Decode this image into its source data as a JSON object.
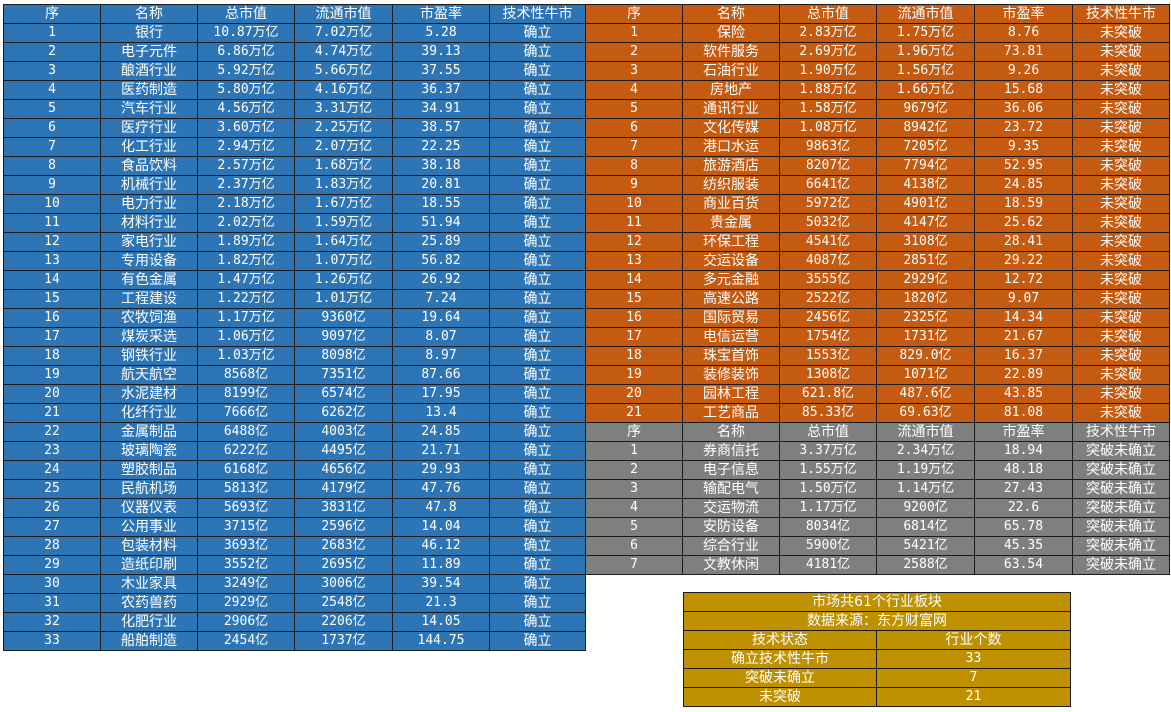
{
  "headers": [
    "序",
    "名称",
    "总市值",
    "流通市值",
    "市盈率",
    "技术性牛市"
  ],
  "blue_rows": [
    [
      "1",
      "银行",
      "10.87万亿",
      "7.02万亿",
      "5.28",
      "确立"
    ],
    [
      "2",
      "电子元件",
      "6.86万亿",
      "4.74万亿",
      "39.13",
      "确立"
    ],
    [
      "3",
      "酿酒行业",
      "5.92万亿",
      "5.66万亿",
      "37.55",
      "确立"
    ],
    [
      "4",
      "医药制造",
      "5.80万亿",
      "4.16万亿",
      "36.37",
      "确立"
    ],
    [
      "5",
      "汽车行业",
      "4.56万亿",
      "3.31万亿",
      "34.91",
      "确立"
    ],
    [
      "6",
      "医疗行业",
      "3.60万亿",
      "2.25万亿",
      "38.57",
      "确立"
    ],
    [
      "7",
      "化工行业",
      "2.94万亿",
      "2.07万亿",
      "22.25",
      "确立"
    ],
    [
      "8",
      "食品饮料",
      "2.57万亿",
      "1.68万亿",
      "38.18",
      "确立"
    ],
    [
      "9",
      "机械行业",
      "2.37万亿",
      "1.83万亿",
      "20.81",
      "确立"
    ],
    [
      "10",
      "电力行业",
      "2.18万亿",
      "1.67万亿",
      "18.55",
      "确立"
    ],
    [
      "11",
      "材料行业",
      "2.02万亿",
      "1.59万亿",
      "51.94",
      "确立"
    ],
    [
      "12",
      "家电行业",
      "1.89万亿",
      "1.64万亿",
      "25.89",
      "确立"
    ],
    [
      "13",
      "专用设备",
      "1.82万亿",
      "1.07万亿",
      "56.82",
      "确立"
    ],
    [
      "14",
      "有色金属",
      "1.47万亿",
      "1.26万亿",
      "26.92",
      "确立"
    ],
    [
      "15",
      "工程建设",
      "1.22万亿",
      "1.01万亿",
      "7.24",
      "确立"
    ],
    [
      "16",
      "农牧饲渔",
      "1.17万亿",
      "9360亿",
      "19.64",
      "确立"
    ],
    [
      "17",
      "煤炭采选",
      "1.06万亿",
      "9097亿",
      "8.07",
      "确立"
    ],
    [
      "18",
      "钢铁行业",
      "1.03万亿",
      "8098亿",
      "8.97",
      "确立"
    ],
    [
      "19",
      "航天航空",
      "8568亿",
      "7351亿",
      "87.66",
      "确立"
    ],
    [
      "20",
      "水泥建材",
      "8199亿",
      "6574亿",
      "17.95",
      "确立"
    ],
    [
      "21",
      "化纤行业",
      "7666亿",
      "6262亿",
      "13.4",
      "确立"
    ],
    [
      "22",
      "金属制品",
      "6488亿",
      "4003亿",
      "24.85",
      "确立"
    ],
    [
      "23",
      "玻璃陶瓷",
      "6222亿",
      "4495亿",
      "21.71",
      "确立"
    ],
    [
      "24",
      "塑胶制品",
      "6168亿",
      "4656亿",
      "29.93",
      "确立"
    ],
    [
      "25",
      "民航机场",
      "5813亿",
      "4179亿",
      "47.76",
      "确立"
    ],
    [
      "26",
      "仪器仪表",
      "5693亿",
      "3831亿",
      "47.8",
      "确立"
    ],
    [
      "27",
      "公用事业",
      "3715亿",
      "2596亿",
      "14.04",
      "确立"
    ],
    [
      "28",
      "包装材料",
      "3693亿",
      "2683亿",
      "46.12",
      "确立"
    ],
    [
      "29",
      "造纸印刷",
      "3552亿",
      "2695亿",
      "11.89",
      "确立"
    ],
    [
      "30",
      "木业家具",
      "3249亿",
      "3006亿",
      "39.54",
      "确立"
    ],
    [
      "31",
      "农药兽药",
      "2929亿",
      "2548亿",
      "21.3",
      "确立"
    ],
    [
      "32",
      "化肥行业",
      "2906亿",
      "2206亿",
      "14.05",
      "确立"
    ],
    [
      "33",
      "船舶制造",
      "2454亿",
      "1737亿",
      "144.75",
      "确立"
    ]
  ],
  "orange_rows": [
    [
      "1",
      "保险",
      "2.83万亿",
      "1.75万亿",
      "8.76",
      "未突破"
    ],
    [
      "2",
      "软件服务",
      "2.69万亿",
      "1.96万亿",
      "73.81",
      "未突破"
    ],
    [
      "3",
      "石油行业",
      "1.90万亿",
      "1.56万亿",
      "9.26",
      "未突破"
    ],
    [
      "4",
      "房地产",
      "1.88万亿",
      "1.66万亿",
      "15.68",
      "未突破"
    ],
    [
      "5",
      "通讯行业",
      "1.58万亿",
      "9679亿",
      "36.06",
      "未突破"
    ],
    [
      "6",
      "文化传媒",
      "1.08万亿",
      "8942亿",
      "23.72",
      "未突破"
    ],
    [
      "7",
      "港口水运",
      "9863亿",
      "7205亿",
      "9.35",
      "未突破"
    ],
    [
      "8",
      "旅游酒店",
      "8207亿",
      "7794亿",
      "52.95",
      "未突破"
    ],
    [
      "9",
      "纺织服装",
      "6641亿",
      "4138亿",
      "24.85",
      "未突破"
    ],
    [
      "10",
      "商业百货",
      "5972亿",
      "4901亿",
      "18.59",
      "未突破"
    ],
    [
      "11",
      "贵金属",
      "5032亿",
      "4147亿",
      "25.62",
      "未突破"
    ],
    [
      "12",
      "环保工程",
      "4541亿",
      "3108亿",
      "28.41",
      "未突破"
    ],
    [
      "13",
      "交运设备",
      "4087亿",
      "2851亿",
      "29.22",
      "未突破"
    ],
    [
      "14",
      "多元金融",
      "3555亿",
      "2929亿",
      "12.72",
      "未突破"
    ],
    [
      "15",
      "高速公路",
      "2522亿",
      "1820亿",
      "9.07",
      "未突破"
    ],
    [
      "16",
      "国际贸易",
      "2456亿",
      "2325亿",
      "14.34",
      "未突破"
    ],
    [
      "17",
      "电信运营",
      "1754亿",
      "1731亿",
      "21.67",
      "未突破"
    ],
    [
      "18",
      "珠宝首饰",
      "1553亿",
      "829.0亿",
      "16.37",
      "未突破"
    ],
    [
      "19",
      "装修装饰",
      "1308亿",
      "1071亿",
      "22.89",
      "未突破"
    ],
    [
      "20",
      "园林工程",
      "621.8亿",
      "487.6亿",
      "43.85",
      "未突破"
    ],
    [
      "21",
      "工艺商品",
      "85.33亿",
      "69.63亿",
      "81.08",
      "未突破"
    ]
  ],
  "gray_rows": [
    [
      "1",
      "券商信托",
      "3.37万亿",
      "2.34万亿",
      "18.94",
      "突破未确立"
    ],
    [
      "2",
      "电子信息",
      "1.55万亿",
      "1.19万亿",
      "48.18",
      "突破未确立"
    ],
    [
      "3",
      "输配电气",
      "1.50万亿",
      "1.14万亿",
      "27.43",
      "突破未确立"
    ],
    [
      "4",
      "交运物流",
      "1.17万亿",
      "9200亿",
      "22.6",
      "突破未确立"
    ],
    [
      "5",
      "安防设备",
      "8034亿",
      "6814亿",
      "65.78",
      "突破未确立"
    ],
    [
      "6",
      "综合行业",
      "5900亿",
      "5421亿",
      "45.35",
      "突破未确立"
    ],
    [
      "7",
      "文教休闲",
      "4181亿",
      "2588亿",
      "63.54",
      "突破未确立"
    ]
  ],
  "summary": {
    "title": "市场共61个行业板块",
    "source": "数据来源：东方财富网",
    "col1": "技术状态",
    "col2": "行业个数",
    "rows": [
      [
        "确立技术性牛市",
        "33"
      ],
      [
        "突破未确立",
        "7"
      ],
      [
        "未突破",
        "21"
      ]
    ]
  },
  "colors": {
    "blue": "#2e75b6",
    "orange": "#c55a11",
    "gray": "#7f7f7f",
    "gold": "#bf9000"
  }
}
